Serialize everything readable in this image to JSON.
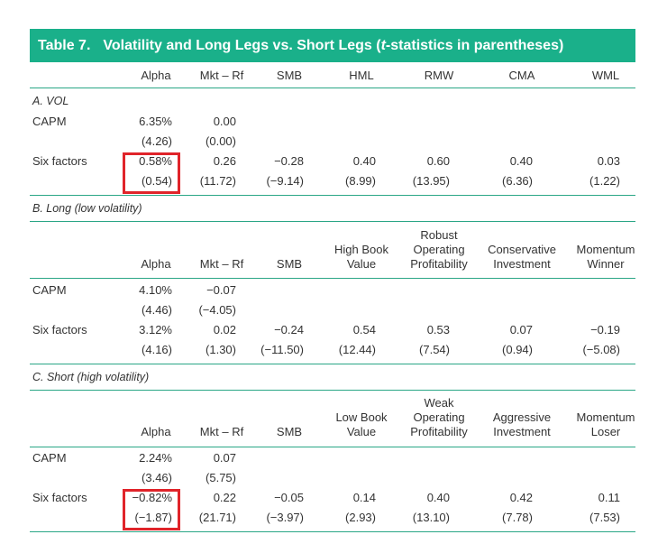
{
  "title": {
    "number": "Table 7.",
    "text_before": "Volatility and Long Legs vs. Short Legs (",
    "text_italic": "t",
    "text_after": "-statistics in parentheses)"
  },
  "header_a": [
    "Alpha",
    "Mkt – Rf",
    "SMB",
    "HML",
    "RMW",
    "CMA",
    "WML"
  ],
  "panels": [
    {
      "label": "A. VOL",
      "rows": [
        {
          "name": "CAPM",
          "values": [
            "6.35%",
            "0.00"
          ],
          "tstats": [
            "(4.26)",
            "(0.00)"
          ]
        },
        {
          "name": "Six factors",
          "values": [
            "0.58%",
            "0.26",
            "−0.28",
            "0.40",
            "0.60",
            "0.40",
            "0.03"
          ],
          "tstats": [
            "(0.54)",
            "(11.72)",
            "(−9.14)",
            "(8.99)",
            "(13.95)",
            "(6.36)",
            "(1.22)"
          ]
        }
      ]
    },
    {
      "label": "B. Long (low volatility)",
      "header": [
        [
          "Alpha"
        ],
        [
          "Mkt – Rf"
        ],
        [
          "SMB"
        ],
        [
          "High Book",
          "Value"
        ],
        [
          "Robust",
          "Operating",
          "Profitability"
        ],
        [
          "Conservative",
          "Investment"
        ],
        [
          "Momentum",
          "Winner"
        ]
      ],
      "rows": [
        {
          "name": "CAPM",
          "values": [
            "4.10%",
            "−0.07"
          ],
          "tstats": [
            "(4.46)",
            "(−4.05)"
          ]
        },
        {
          "name": "Six factors",
          "values": [
            "3.12%",
            "0.02",
            "−0.24",
            "0.54",
            "0.53",
            "0.07",
            "−0.19"
          ],
          "tstats": [
            "(4.16)",
            "(1.30)",
            "(−11.50)",
            "(12.44)",
            "(7.54)",
            "(0.94)",
            "(−5.08)"
          ]
        }
      ]
    },
    {
      "label": "C. Short (high volatility)",
      "header": [
        [
          "Alpha"
        ],
        [
          "Mkt – Rf"
        ],
        [
          "SMB"
        ],
        [
          "Low Book",
          "Value"
        ],
        [
          "Weak",
          "Operating",
          "Profitability"
        ],
        [
          "Aggressive",
          "Investment"
        ],
        [
          "Momentum",
          "Loser"
        ]
      ],
      "rows": [
        {
          "name": "CAPM",
          "values": [
            "2.24%",
            "0.07"
          ],
          "tstats": [
            "(3.46)",
            "(5.75)"
          ]
        },
        {
          "name": "Six factors",
          "values": [
            "−0.82%",
            "0.22",
            "−0.05",
            "0.14",
            "0.40",
            "0.42",
            "0.11"
          ],
          "tstats": [
            "(−1.87)",
            "(21.71)",
            "(−3.97)",
            "(2.93)",
            "(13.10)",
            "(7.78)",
            "(7.53)"
          ]
        }
      ]
    }
  ],
  "colors": {
    "banner": "#1ab08a",
    "rule": "#2aa686",
    "highlight": "#e0242a",
    "text": "#333333"
  }
}
